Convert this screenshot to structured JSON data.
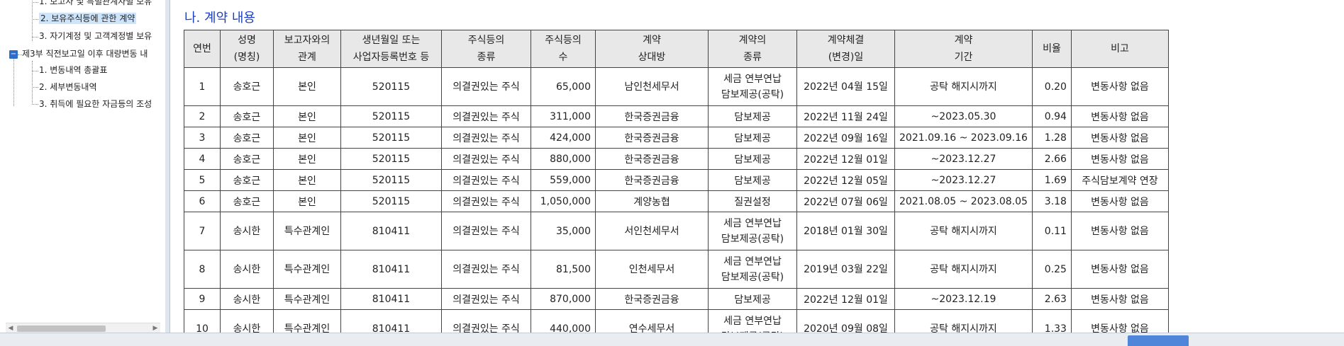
{
  "tree": {
    "items": [
      {
        "label": "1. 보고자 및 특별관계자별 보유",
        "selected": false
      },
      {
        "label": "2. 보유주식등에 관한 계약",
        "selected": true
      },
      {
        "label": "3. 자기계정 및 고객계정별 보유",
        "selected": false
      },
      {
        "label": "제3부 직전보고일 이후 대량변동 내",
        "selected": false
      },
      {
        "label": "1. 변동내역 총괄표",
        "selected": false
      },
      {
        "label": "2. 세부변동내역",
        "selected": false
      },
      {
        "label": "3. 취득에 필요한 자금등의 조성",
        "selected": false
      }
    ],
    "toggle_glyph": "−"
  },
  "section_title": "나. 계약 내용",
  "table": {
    "headers": [
      [
        "연번"
      ],
      [
        "성명",
        "(명칭)"
      ],
      [
        "보고자와의",
        "관계"
      ],
      [
        "생년월일 또는",
        "사업자등록번호 등"
      ],
      [
        "주식등의",
        "종류"
      ],
      [
        "주식등의",
        "수"
      ],
      [
        "계약",
        "상대방"
      ],
      [
        "계약의",
        "종류"
      ],
      [
        "계약체결",
        "(변경)일"
      ],
      [
        "계약",
        "기간"
      ],
      [
        "비율"
      ],
      [
        "비고"
      ]
    ],
    "rows": [
      {
        "no": "1",
        "name": "송호근",
        "rel": "본인",
        "id": "520115",
        "type": "의결권있는 주식",
        "qty": "65,000",
        "party": "남인천세무서",
        "kind": [
          "세금 연부연납",
          "담보제공(공탁)"
        ],
        "date": "2022년 04월 15일",
        "period": "공탁 해지시까지",
        "ratio": "0.20",
        "note": "변동사항 없음"
      },
      {
        "no": "2",
        "name": "송호근",
        "rel": "본인",
        "id": "520115",
        "type": "의결권있는 주식",
        "qty": "311,000",
        "party": "한국증권금융",
        "kind": [
          "담보제공"
        ],
        "date": "2022년 11월 24일",
        "period": "~2023.05.30",
        "ratio": "0.94",
        "note": "변동사항 없음"
      },
      {
        "no": "3",
        "name": "송호근",
        "rel": "본인",
        "id": "520115",
        "type": "의결권있는 주식",
        "qty": "424,000",
        "party": "한국증권금융",
        "kind": [
          "담보제공"
        ],
        "date": "2022년 09월 16일",
        "period": "2021.09.16 ~ 2023.09.16",
        "ratio": "1.28",
        "note": "변동사항 없음"
      },
      {
        "no": "4",
        "name": "송호근",
        "rel": "본인",
        "id": "520115",
        "type": "의결권있는 주식",
        "qty": "880,000",
        "party": "한국증권금융",
        "kind": [
          "담보제공"
        ],
        "date": "2022년 12월 01일",
        "period": "~2023.12.27",
        "ratio": "2.66",
        "note": "변동사항 없음"
      },
      {
        "no": "5",
        "name": "송호근",
        "rel": "본인",
        "id": "520115",
        "type": "의결권있는 주식",
        "qty": "559,000",
        "party": "한국증권금융",
        "kind": [
          "담보제공"
        ],
        "date": "2022년 12월 05일",
        "period": "~2023.12.27",
        "ratio": "1.69",
        "note": "주식담보계약 연장"
      },
      {
        "no": "6",
        "name": "송호근",
        "rel": "본인",
        "id": "520115",
        "type": "의결권있는 주식",
        "qty": "1,050,000",
        "party": "계양농협",
        "kind": [
          "질권설정"
        ],
        "date": "2022년 07월 06일",
        "period": "2021.08.05 ~ 2023.08.05",
        "ratio": "3.18",
        "note": "변동사항 없음"
      },
      {
        "no": "7",
        "name": "송시한",
        "rel": "특수관계인",
        "id": "810411",
        "type": "의결권있는 주식",
        "qty": "35,000",
        "party": "서인천세무서",
        "kind": [
          "세금 연부연납",
          "담보제공(공탁)"
        ],
        "date": "2018년 01월 30일",
        "period": "공탁 해지시까지",
        "ratio": "0.11",
        "note": "변동사항 없음"
      },
      {
        "no": "8",
        "name": "송시한",
        "rel": "특수관계인",
        "id": "810411",
        "type": "의결권있는 주식",
        "qty": "81,500",
        "party": "인천세무서",
        "kind": [
          "세금 연부연납",
          "담보제공(공탁)"
        ],
        "date": "2019년 03월 22일",
        "period": "공탁 해지시까지",
        "ratio": "0.25",
        "note": "변동사항 없음"
      },
      {
        "no": "9",
        "name": "송시한",
        "rel": "특수관계인",
        "id": "810411",
        "type": "의결권있는 주식",
        "qty": "870,000",
        "party": "한국증권금융",
        "kind": [
          "담보제공"
        ],
        "date": "2022년 12월 01일",
        "period": "~2023.12.19",
        "ratio": "2.63",
        "note": "변동사항 없음"
      },
      {
        "no": "10",
        "name": "송시한",
        "rel": "특수관계인",
        "id": "810411",
        "type": "의결권있는 주식",
        "qty": "440,000",
        "party": "연수세무서",
        "kind": [
          "세금 연부연납",
          "담보제공(공탁)"
        ],
        "date": "2020년 09월 08일",
        "period": "공탁 해지시까지",
        "ratio": "1.33",
        "note": "변동사항 없음"
      }
    ]
  },
  "colors": {
    "title_blue": "#1b3fbf",
    "header_bg": "#e8e8e8",
    "selected_bg": "#cde4fa",
    "toggle_bg": "#2e6cc7"
  },
  "icons": {
    "scroll_left": "◀",
    "scroll_right": "▶",
    "scroll_up": "▲",
    "scroll_down": "▼"
  }
}
